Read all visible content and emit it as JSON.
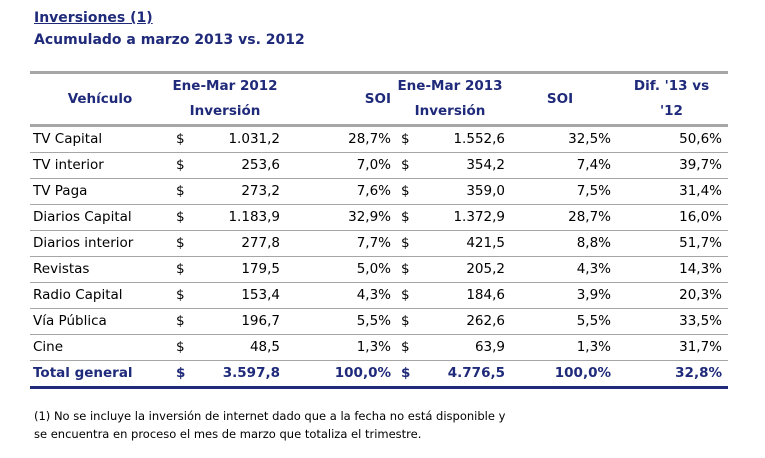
{
  "title": "Inversiones (1)",
  "subtitle": "Acumulado a marzo 2013 vs. 2012",
  "headers": {
    "vehiculo": "Vehículo",
    "period_2012": "Ene-Mar 2012",
    "inversion_2012": "Inversión",
    "soi_2012": "SOI",
    "period_2013": "Ene-Mar 2013",
    "inversion_2013": "Inversión",
    "soi_2013": "SOI",
    "dif_line1": "Dif. '13 vs",
    "dif_line2": "'12"
  },
  "currency": "$",
  "rows": [
    {
      "vehiculo": "TV Capital",
      "inv_2012": "1.031,2",
      "soi_2012": "28,7%",
      "inv_2013": "1.552,6",
      "soi_2013": "32,5%",
      "dif": "50,6%"
    },
    {
      "vehiculo": "TV interior",
      "inv_2012": "253,6",
      "soi_2012": "7,0%",
      "inv_2013": "354,2",
      "soi_2013": "7,4%",
      "dif": "39,7%"
    },
    {
      "vehiculo": "TV Paga",
      "inv_2012": "273,2",
      "soi_2012": "7,6%",
      "inv_2013": "359,0",
      "soi_2013": "7,5%",
      "dif": "31,4%"
    },
    {
      "vehiculo": "Diarios Capital",
      "inv_2012": "1.183,9",
      "soi_2012": "32,9%",
      "inv_2013": "1.372,9",
      "soi_2013": "28,7%",
      "dif": "16,0%"
    },
    {
      "vehiculo": "Diarios interior",
      "inv_2012": "277,8",
      "soi_2012": "7,7%",
      "inv_2013": "421,5",
      "soi_2013": "8,8%",
      "dif": "51,7%"
    },
    {
      "vehiculo": "Revistas",
      "inv_2012": "179,5",
      "soi_2012": "5,0%",
      "inv_2013": "205,2",
      "soi_2013": "4,3%",
      "dif": "14,3%"
    },
    {
      "vehiculo": "Radio Capital",
      "inv_2012": "153,4",
      "soi_2012": "4,3%",
      "inv_2013": "184,6",
      "soi_2013": "3,9%",
      "dif": "20,3%"
    },
    {
      "vehiculo": "Vía Pública",
      "inv_2012": "196,7",
      "soi_2012": "5,5%",
      "inv_2013": "262,6",
      "soi_2013": "5,5%",
      "dif": "33,5%"
    },
    {
      "vehiculo": "Cine",
      "inv_2012": "48,5",
      "soi_2012": "1,3%",
      "inv_2013": "63,9",
      "soi_2013": "1,3%",
      "dif": "31,7%"
    }
  ],
  "total": {
    "vehiculo": "Total general",
    "inv_2012": "3.597,8",
    "soi_2012": "100,0%",
    "inv_2013": "4.776,5",
    "soi_2013": "100,0%",
    "dif": "32,8%"
  },
  "footnote_line1": "(1) No se incluye la inversión de internet dado que a la fecha no está disponible y",
  "footnote_line2": "se encuentra en proceso el mes de marzo que totaliza el trimestre.",
  "colors": {
    "heading": "#1F2A7A",
    "rule": "#A6A6A6"
  }
}
